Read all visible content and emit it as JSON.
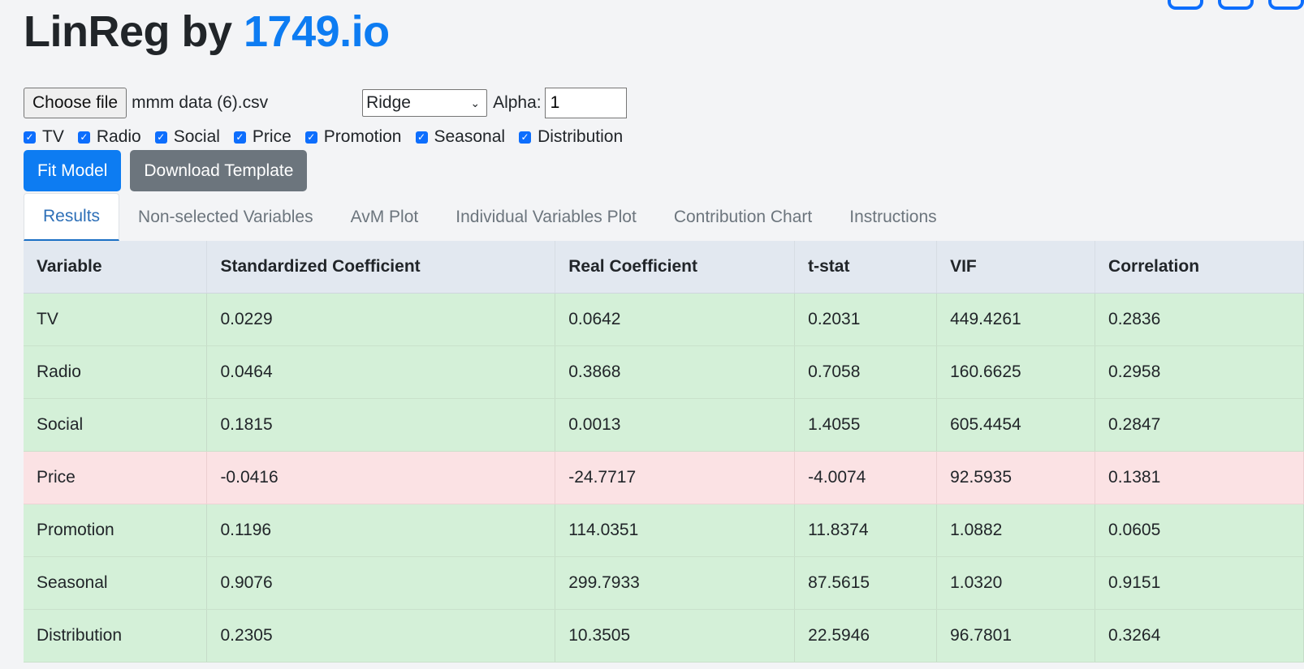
{
  "app": {
    "title_prefix": "LinReg by ",
    "title_brand": "1749.io"
  },
  "controls": {
    "file_button": "Choose file",
    "file_name": "mmm data (6).csv",
    "model_select": "Ridge",
    "alpha_label": "Alpha:",
    "alpha_value": "1"
  },
  "variables": [
    "TV",
    "Radio",
    "Social",
    "Price",
    "Promotion",
    "Seasonal",
    "Distribution"
  ],
  "buttons": {
    "fit": "Fit Model",
    "download": "Download Template"
  },
  "tabs": [
    "Results",
    "Non-selected Variables",
    "AvM Plot",
    "Individual Variables Plot",
    "Contribution Chart",
    "Instructions"
  ],
  "active_tab": "Results",
  "table": {
    "headers": [
      "Variable",
      "Standardized Coefficient",
      "Real Coefficient",
      "t-stat",
      "VIF",
      "Correlation"
    ],
    "rows": [
      [
        "TV",
        "0.0229",
        "0.0642",
        "0.2031",
        "449.4261",
        "0.2836"
      ],
      [
        "Radio",
        "0.0464",
        "0.3868",
        "0.7058",
        "160.6625",
        "0.2958"
      ],
      [
        "Social",
        "0.1815",
        "0.0013",
        "1.4055",
        "605.4454",
        "0.2847"
      ],
      [
        "Price",
        "-0.0416",
        "-24.7717",
        "-4.0074",
        "92.5935",
        "0.1381"
      ],
      [
        "Promotion",
        "0.1196",
        "114.0351",
        "11.8374",
        "1.0882",
        "0.0605"
      ],
      [
        "Seasonal",
        "0.9076",
        "299.7933",
        "87.5615",
        "1.0320",
        "0.9151"
      ],
      [
        "Distribution",
        "0.2305",
        "10.3505",
        "22.5946",
        "96.7801",
        "0.3264"
      ]
    ]
  },
  "colors": {
    "accent": "#0d7cf2",
    "positive_row": "#d4f0d8",
    "negative_row": "#fbe2e4"
  }
}
